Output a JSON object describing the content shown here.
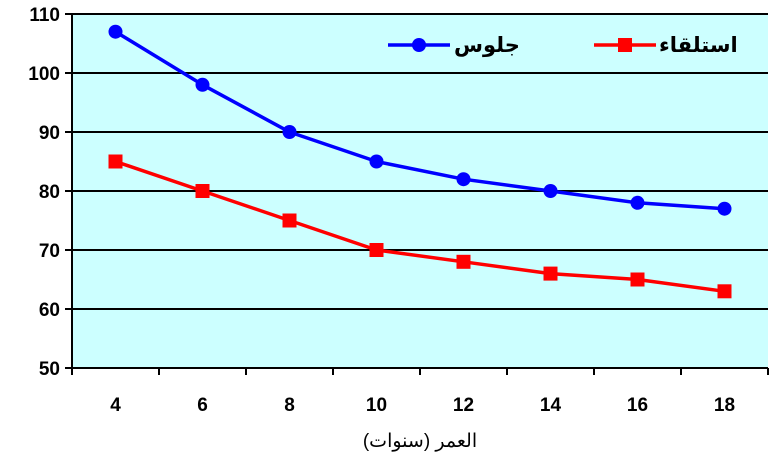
{
  "chart_data": {
    "type": "line",
    "title": "",
    "xlabel": "العمر (سنوات)",
    "ylabel": "",
    "x": [
      4,
      6,
      8,
      10,
      12,
      14,
      16,
      18
    ],
    "xlim": [
      3,
      19
    ],
    "ylim": [
      50,
      110
    ],
    "yticks": [
      50,
      60,
      70,
      80,
      90,
      100,
      110
    ],
    "grid": true,
    "legend_position": "top-right",
    "background_color": "#ccffff",
    "series": [
      {
        "name": "جلوس",
        "color": "#0000ff",
        "marker": "circle",
        "values": [
          107,
          98,
          90,
          85,
          82,
          80,
          78,
          77
        ]
      },
      {
        "name": "استلقاء",
        "color": "#ff0000",
        "marker": "square",
        "values": [
          85,
          80,
          75,
          70,
          68,
          66,
          65,
          63
        ]
      }
    ]
  }
}
